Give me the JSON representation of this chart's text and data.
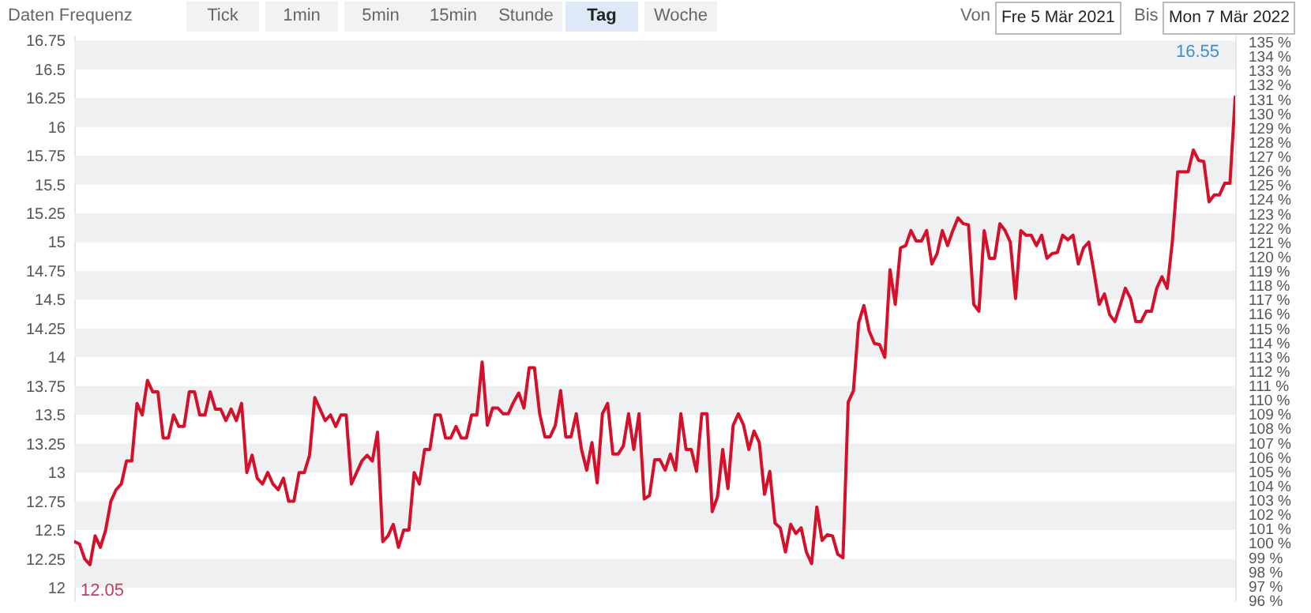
{
  "chart_data": {
    "type": "line",
    "categories": [
      null,
      null,
      null,
      null,
      null,
      null,
      null,
      null,
      null,
      null,
      null,
      null,
      null,
      null,
      null,
      null,
      null,
      null,
      null,
      null,
      null,
      null,
      null,
      null,
      null,
      null,
      null,
      null,
      null,
      null,
      null,
      null,
      null,
      null,
      null,
      null,
      null,
      null,
      null,
      null,
      null,
      null,
      null,
      null,
      null,
      null,
      null,
      null,
      null,
      null,
      null,
      null,
      null,
      null,
      null,
      null,
      null,
      null,
      null,
      null,
      null,
      null,
      null,
      null,
      null,
      null,
      null,
      null,
      null,
      null,
      null,
      null,
      null,
      null,
      null,
      null,
      null,
      null,
      null,
      null,
      null,
      null,
      null,
      null,
      null,
      null,
      null,
      null,
      null,
      null,
      null,
      null,
      null,
      null,
      null,
      null,
      null,
      null,
      null,
      null,
      null,
      null,
      null,
      null,
      null,
      null,
      null,
      null,
      null,
      null,
      null,
      null,
      null,
      null,
      null,
      null,
      null,
      null,
      null,
      null,
      null,
      null,
      null,
      null,
      null,
      null,
      null,
      null,
      null,
      null,
      null,
      null,
      null,
      null,
      null,
      null,
      null,
      null,
      null,
      null,
      null,
      null,
      null,
      null,
      null,
      null,
      null,
      null,
      null,
      null,
      null,
      null,
      null,
      null,
      null,
      null,
      null,
      null,
      null,
      null,
      null,
      null,
      null,
      null,
      null,
      null,
      null,
      null,
      null,
      null,
      null,
      null,
      null,
      null,
      null,
      null,
      null,
      null,
      null,
      null,
      null,
      null,
      null,
      null,
      null,
      null,
      null,
      null,
      null,
      null,
      null,
      null,
      null,
      null,
      null,
      null,
      null,
      null,
      null,
      null,
      null,
      null,
      null,
      null,
      null,
      null,
      null,
      null,
      null,
      null,
      null,
      null,
      null,
      null,
      null,
      null,
      null,
      null,
      null,
      null,
      null,
      null,
      null
    ],
    "series": [
      {
        "color": "#d5102a",
        "values": [
          12.4,
          12.38,
          12.25,
          12.2,
          12.45,
          12.35,
          12.5,
          12.75,
          12.85,
          12.9,
          13.1,
          13.1,
          13.6,
          13.5,
          13.8,
          13.7,
          13.7,
          13.3,
          13.3,
          13.5,
          13.4,
          13.4,
          13.7,
          13.7,
          13.5,
          13.5,
          13.7,
          13.55,
          13.55,
          13.45,
          13.55,
          13.45,
          13.6,
          13.0,
          13.15,
          12.95,
          12.9,
          13.0,
          12.9,
          12.85,
          12.95,
          12.75,
          12.75,
          13.0,
          13.0,
          13.15,
          13.65,
          13.55,
          13.45,
          13.5,
          13.4,
          13.5,
          13.5,
          12.9,
          13.0,
          13.1,
          13.15,
          13.1,
          13.35,
          12.4,
          12.45,
          12.55,
          12.35,
          12.5,
          12.5,
          13.0,
          12.9,
          13.2,
          13.2,
          13.5,
          13.5,
          13.3,
          13.3,
          13.4,
          13.3,
          13.3,
          13.5,
          13.5,
          13.96,
          13.41,
          13.56,
          13.56,
          13.51,
          13.51,
          13.61,
          13.69,
          13.56,
          13.91,
          13.91,
          13.51,
          13.31,
          13.31,
          13.41,
          13.71,
          13.31,
          13.31,
          13.51,
          13.2,
          13.02,
          13.26,
          12.91,
          13.51,
          13.6,
          13.16,
          13.16,
          13.23,
          13.51,
          13.2,
          13.51,
          12.77,
          12.8,
          13.11,
          13.11,
          13.02,
          13.16,
          13.02,
          13.51,
          13.2,
          13.2,
          13.01,
          13.51,
          13.51,
          12.66,
          12.79,
          13.2,
          12.86,
          13.41,
          13.51,
          13.41,
          13.2,
          13.36,
          13.26,
          12.81,
          13.01,
          12.56,
          12.52,
          12.31,
          12.55,
          12.47,
          12.52,
          12.31,
          12.21,
          12.7,
          12.41,
          12.46,
          12.45,
          12.29,
          12.26,
          13.61,
          13.71,
          14.3,
          14.45,
          14.23,
          14.12,
          14.11,
          14.0,
          14.76,
          14.46,
          14.95,
          14.97,
          15.1,
          15.01,
          15.01,
          15.1,
          14.81,
          14.9,
          15.1,
          14.97,
          15.1,
          15.21,
          15.16,
          15.15,
          14.46,
          14.4,
          15.1,
          14.86,
          14.86,
          15.16,
          15.1,
          15.0,
          14.51,
          15.1,
          15.06,
          15.06,
          14.97,
          15.06,
          14.86,
          14.9,
          14.91,
          15.06,
          15.02,
          15.06,
          14.81,
          14.95,
          15.0,
          14.74,
          14.46,
          14.55,
          14.37,
          14.31,
          14.45,
          14.6,
          14.51,
          14.31,
          14.31,
          14.4,
          14.4,
          14.6,
          14.7,
          14.6,
          15.01,
          15.61,
          15.61,
          15.61,
          15.8,
          15.71,
          15.7,
          15.35,
          15.41,
          15.41,
          15.51,
          15.51,
          16.26
        ]
      }
    ],
    "ylim": [
      11.89,
      16.8
    ],
    "yticks": [
      12,
      12.25,
      12.5,
      12.75,
      13,
      13.25,
      13.5,
      13.75,
      14,
      14.25,
      14.5,
      14.75,
      15,
      15.25,
      15.5,
      15.75,
      16,
      16.25,
      16.5,
      16.75
    ],
    "y2lim": [
      96,
      135.5
    ],
    "y2ticks": [
      {
        "value": 96,
        "label": "96 %"
      },
      {
        "value": 97,
        "label": "97 %"
      },
      {
        "value": 98,
        "label": "98 %"
      },
      {
        "value": 99,
        "label": "99 %"
      },
      {
        "value": 100,
        "label": "100 %"
      },
      {
        "value": 101,
        "label": "101 %"
      },
      {
        "value": 102,
        "label": "102 %"
      },
      {
        "value": 103,
        "label": "103 %"
      },
      {
        "value": 104,
        "label": "104 %"
      },
      {
        "value": 105,
        "label": "105 %"
      },
      {
        "value": 106,
        "label": "106 %"
      },
      {
        "value": 107,
        "label": "107 %"
      },
      {
        "value": 108,
        "label": "108 %"
      },
      {
        "value": 109,
        "label": "109 %"
      },
      {
        "value": 110,
        "label": "110 %"
      },
      {
        "value": 111,
        "label": "111 %"
      },
      {
        "value": 112,
        "label": "112 %"
      },
      {
        "value": 113,
        "label": "113 %"
      },
      {
        "value": 114,
        "label": "114 %"
      },
      {
        "value": 115,
        "label": "115 %"
      },
      {
        "value": 116,
        "label": "116 %"
      },
      {
        "value": 117,
        "label": "117 %"
      },
      {
        "value": 118,
        "label": "118 %"
      },
      {
        "value": 119,
        "label": "119 %"
      },
      {
        "value": 120,
        "label": "120 %"
      },
      {
        "value": 121,
        "label": "121 %"
      },
      {
        "value": 122,
        "label": "122 %"
      },
      {
        "value": 123,
        "label": "123 %"
      },
      {
        "value": 124,
        "label": "124 %"
      },
      {
        "value": 125,
        "label": "125 %"
      },
      {
        "value": 126,
        "label": "126 %"
      },
      {
        "value": 127,
        "label": "127 %"
      },
      {
        "value": 128,
        "label": "128 %"
      },
      {
        "value": 129,
        "label": "129 %"
      },
      {
        "value": 130,
        "label": "130 %"
      },
      {
        "value": 131,
        "label": "131 %"
      },
      {
        "value": 132,
        "label": "132 %"
      },
      {
        "value": 133,
        "label": "133 %"
      },
      {
        "value": 134,
        "label": "134 %"
      },
      {
        "value": 135,
        "label": "135 %"
      }
    ],
    "bands": [
      {
        "axis": "y",
        "from": 12,
        "to": 12.25,
        "color": "#eef0f2"
      },
      {
        "axis": "y",
        "from": 12.5,
        "to": 12.75,
        "color": "#eef0f2"
      },
      {
        "axis": "y",
        "from": 13,
        "to": 13.25,
        "color": "#eef0f2"
      },
      {
        "axis": "y",
        "from": 13.5,
        "to": 13.75,
        "color": "#eef0f2"
      },
      {
        "axis": "y",
        "from": 14,
        "to": 14.25,
        "color": "#eef0f2"
      },
      {
        "axis": "y",
        "from": 14.5,
        "to": 14.75,
        "color": "#eef0f2"
      },
      {
        "axis": "y",
        "from": 15,
        "to": 15.25,
        "color": "#eef0f2"
      },
      {
        "axis": "y",
        "from": 15.5,
        "to": 15.75,
        "color": "#eef0f2"
      },
      {
        "axis": "y",
        "from": 16,
        "to": 16.25,
        "color": "#eef0f2"
      },
      {
        "axis": "y",
        "from": 16.5,
        "to": 16.75,
        "color": "#eef0f2"
      }
    ],
    "tick_labels": "y",
    "annotations": [
      "Daten Frequenz",
      "Tick",
      "1min",
      "5min",
      "15min",
      "Stunde",
      "Tag",
      "Woche",
      "Von",
      "Fre 5 Mär 2021",
      "Bis",
      "Mon 7 Mär 2022",
      "16.55",
      "12.05"
    ]
  }
}
